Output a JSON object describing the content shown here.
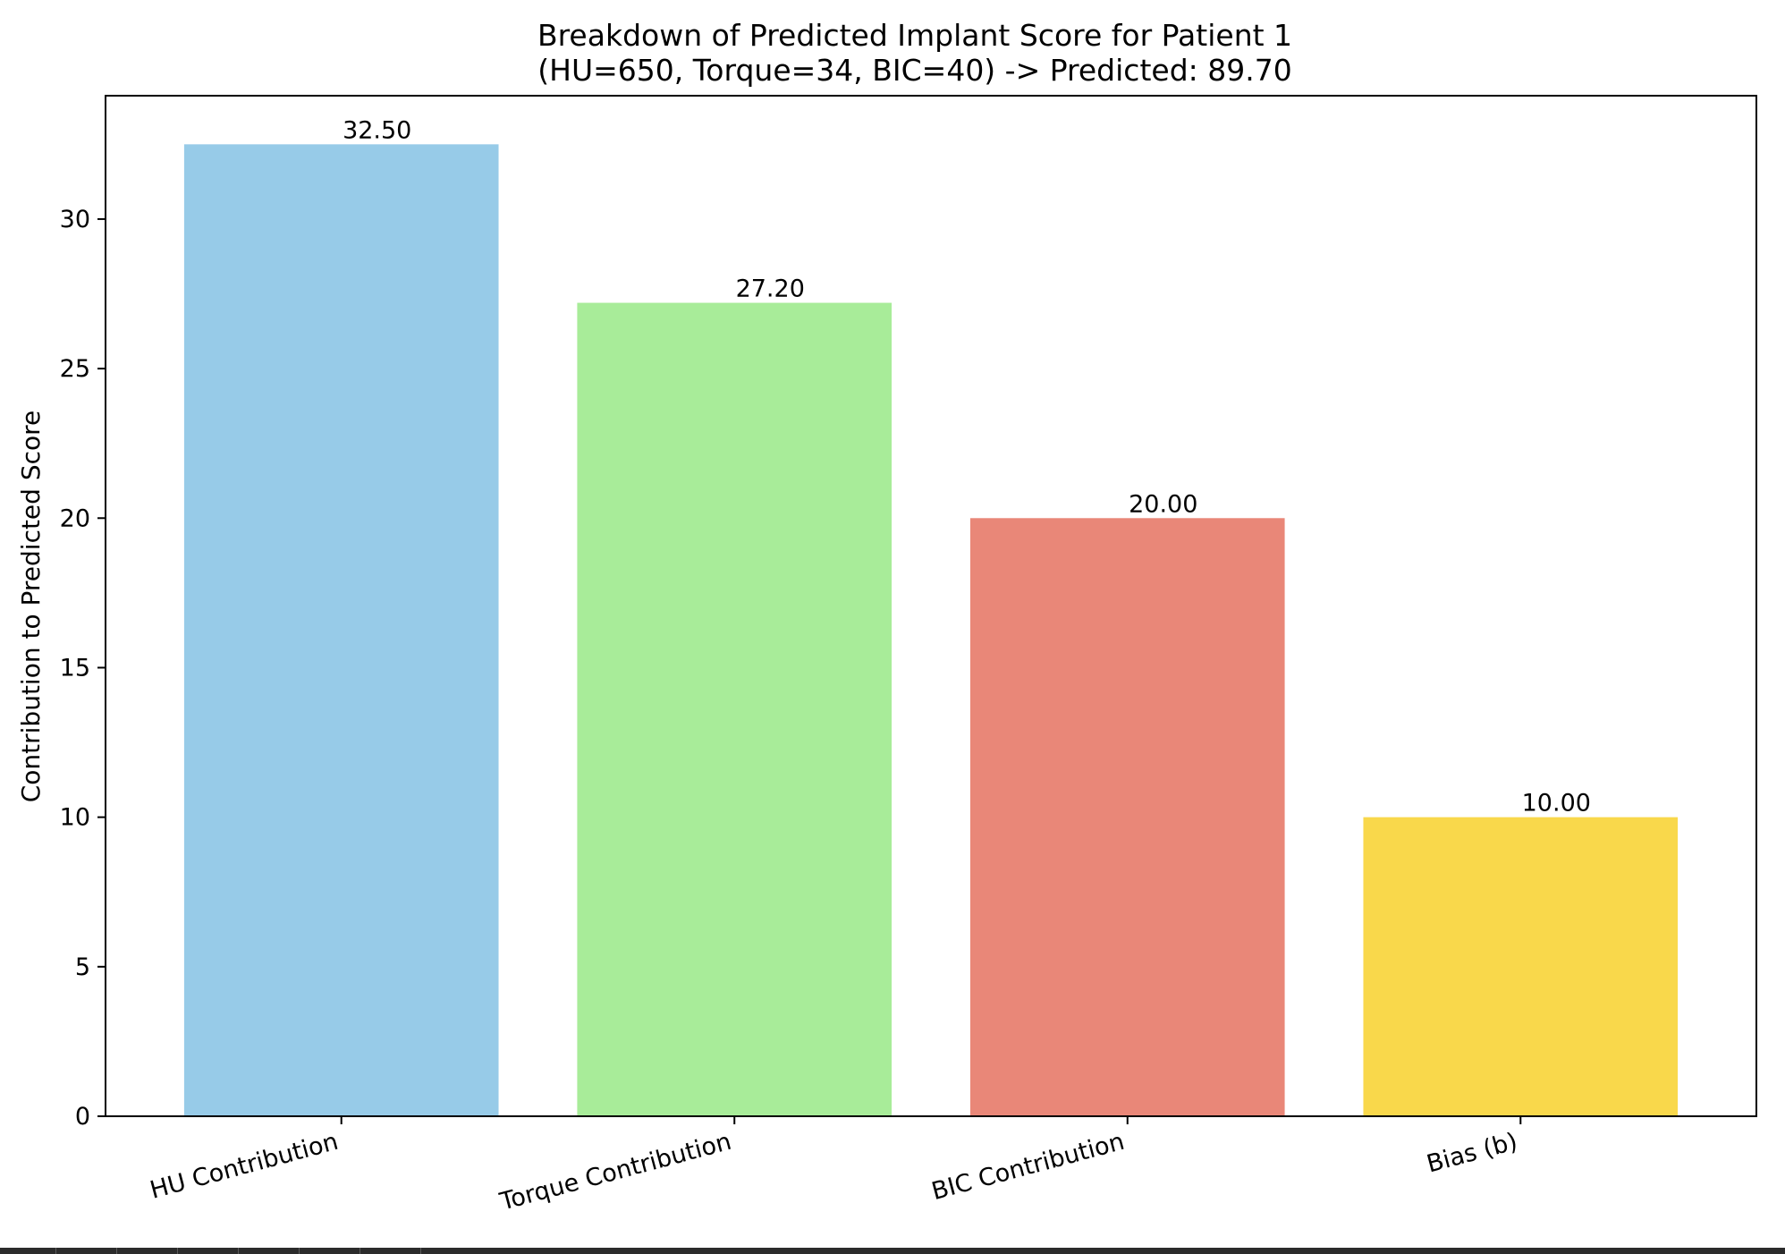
{
  "chart_data": {
    "type": "bar",
    "title": "Breakdown of Predicted Implant Score for Patient 1",
    "subtitle": "(HU=650, Torque=34, BIC=40) -> Predicted: 89.70",
    "xlabel": "",
    "ylabel": "Contribution to Predicted Score",
    "categories": [
      "HU Contribution",
      "Torque Contribution",
      "BIC Contribution",
      "Bias (b)"
    ],
    "values": [
      32.5,
      27.2,
      20.0,
      10.0
    ],
    "value_labels": [
      "32.50",
      "27.20",
      "20.00",
      "10.00"
    ],
    "colors": [
      "#97cbe8",
      "#a8ec99",
      "#e98778",
      "#f9d84b"
    ],
    "ylim": [
      0,
      34.125
    ],
    "yticks": [
      0,
      5,
      10,
      15,
      20,
      25,
      30
    ],
    "ytick_labels": [
      "0",
      "5",
      "10",
      "15",
      "20",
      "25",
      "30"
    ],
    "grid": false,
    "legend": "none"
  }
}
